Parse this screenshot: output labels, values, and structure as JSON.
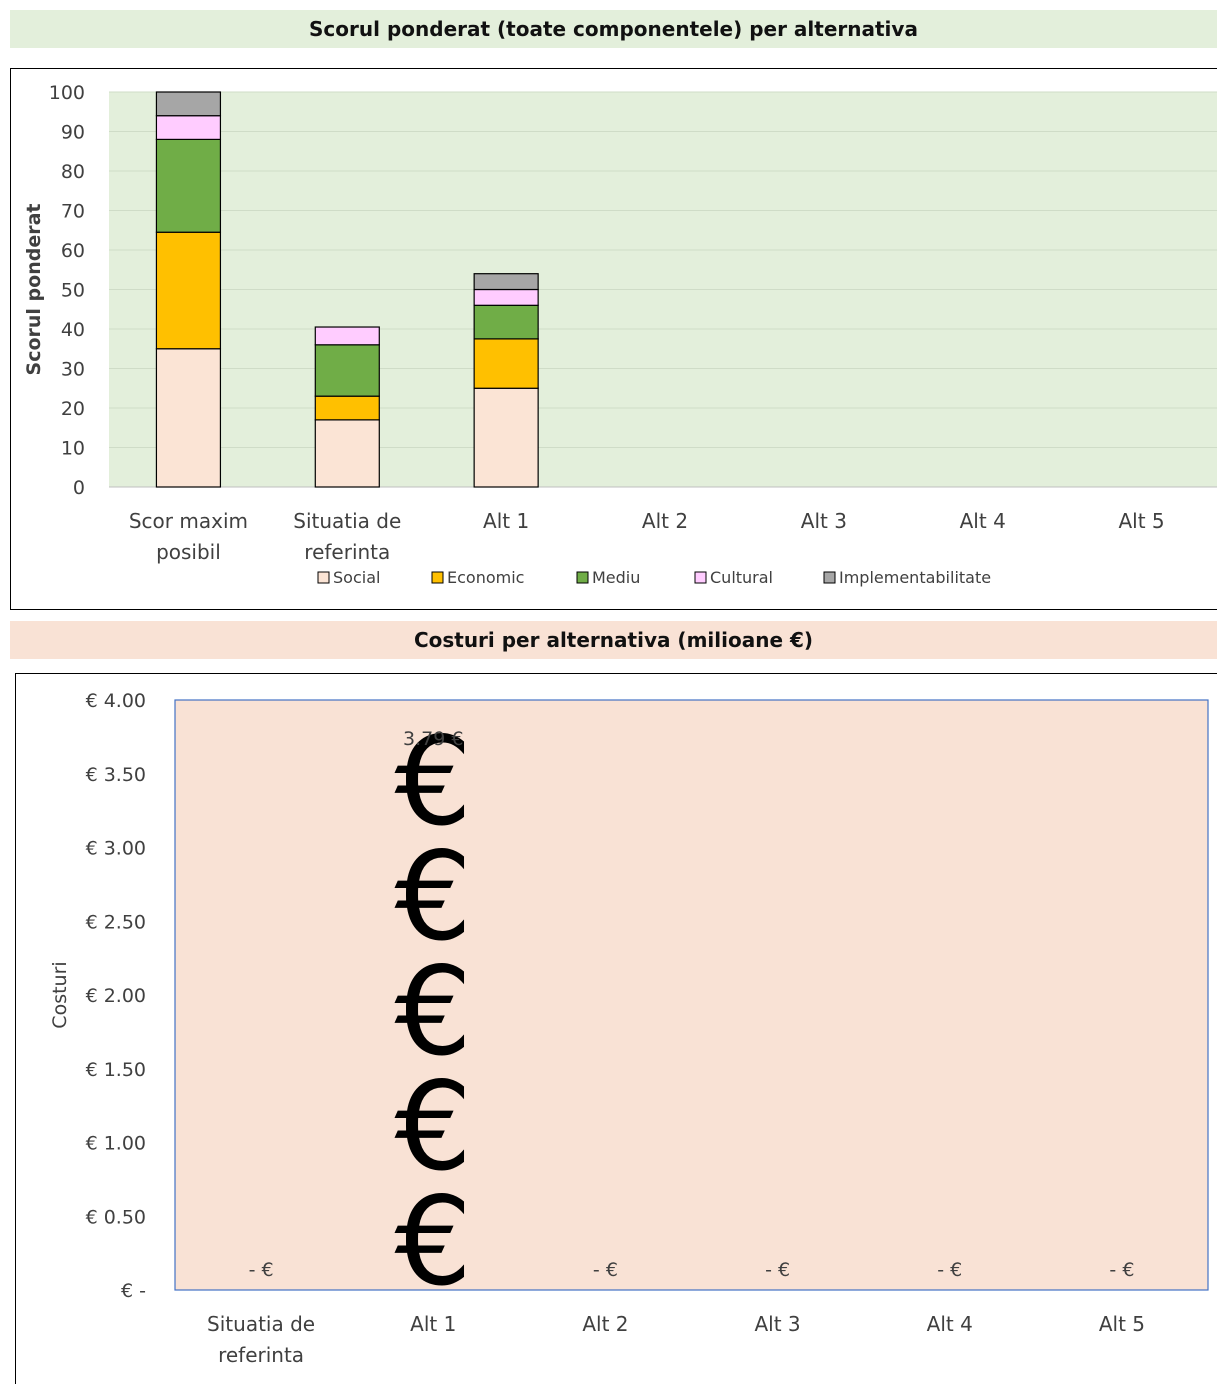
{
  "colors": {
    "chart1_banner_bg": "#e3efdb",
    "chart1_plot_bg": "#e3efdb",
    "chart2_banner_bg": "#f9e2d5",
    "chart2_plot_bg": "#f9e2d5",
    "chart2_plot_border": "#4472c4",
    "social": "#fbe4d5",
    "economic": "#ffc000",
    "mediu": "#70ad47",
    "cultural": "#ffccff",
    "implementabilitate": "#a6a6a6"
  },
  "chart_data": [
    {
      "type": "bar",
      "stacked": true,
      "title": "Scorul ponderat  (toate componentele) per alternativa",
      "xlabel": "",
      "ylabel": "Scorul ponderat",
      "ylim": [
        0,
        100
      ],
      "yticks": [
        "0",
        "10",
        "20",
        "30",
        "40",
        "50",
        "60",
        "70",
        "80",
        "90",
        "100"
      ],
      "grid": true,
      "legend_position": "bottom",
      "categories": [
        [
          "Scor maxim",
          "posibil"
        ],
        [
          "Situatia de",
          "referinta"
        ],
        [
          "Alt 1"
        ],
        [
          "Alt 2"
        ],
        [
          "Alt 3"
        ],
        [
          "Alt 4"
        ],
        [
          "Alt 5"
        ]
      ],
      "series": [
        {
          "name": "Social",
          "color_key": "social",
          "values": [
            35,
            17,
            25,
            0,
            0,
            0,
            0
          ]
        },
        {
          "name": "Economic",
          "color_key": "economic",
          "values": [
            29.5,
            6,
            12.5,
            0,
            0,
            0,
            0
          ]
        },
        {
          "name": "Mediu",
          "color_key": "mediu",
          "values": [
            23.5,
            13,
            8.5,
            0,
            0,
            0,
            0
          ]
        },
        {
          "name": "Cultural",
          "color_key": "cultural",
          "values": [
            6,
            4.5,
            4,
            0,
            0,
            0,
            0
          ]
        },
        {
          "name": "Implementabilitate",
          "color_key": "implementabilitate",
          "values": [
            6,
            0,
            4,
            0,
            0,
            0,
            0
          ]
        }
      ]
    },
    {
      "type": "bar",
      "title": "Costuri per alternativa (milioane €)",
      "xlabel": "",
      "ylabel": "Costuri",
      "ylim": [
        0,
        4
      ],
      "yticks": [
        "€ -",
        "€ 0.50",
        "€ 1.00",
        "€ 1.50",
        "€ 2.00",
        "€ 2.50",
        "€ 3.00",
        "€ 3.50",
        "€ 4.00"
      ],
      "grid": false,
      "legend_position": "none",
      "marker_glyph": "€",
      "marker_unit": 0.78,
      "categories": [
        [
          "Situatia de",
          "referinta"
        ],
        [
          "Alt 1"
        ],
        [
          "Alt 2"
        ],
        [
          "Alt 3"
        ],
        [
          "Alt 4"
        ],
        [
          "Alt 5"
        ]
      ],
      "values": [
        0,
        3.79,
        0,
        0,
        0,
        0
      ],
      "data_labels": [
        "-  €",
        "3.79 €",
        "-  €",
        "-  €",
        "-  €",
        "-  €"
      ]
    }
  ]
}
